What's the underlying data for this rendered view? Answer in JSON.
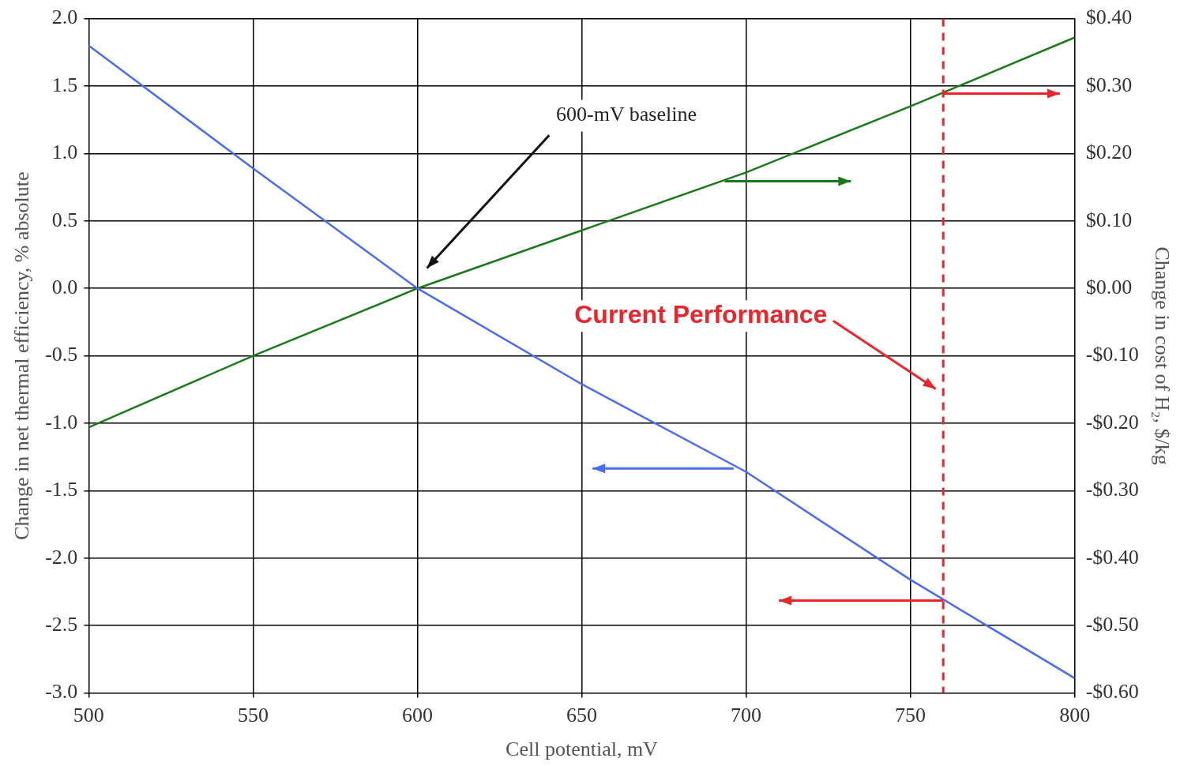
{
  "chart_data": {
    "type": "line",
    "xlabel": "Cell potential, mV",
    "ylabel": "Change in net thermal efficiency, % absolute",
    "y2label": "Change in cost of H₂, $/kg",
    "x": [
      500,
      550,
      600,
      650,
      700,
      750,
      800
    ],
    "series": [
      {
        "color": "#4a6cf0",
        "values": [
          1.8,
          0.89,
          0,
          -0.71,
          -1.36,
          -2.16,
          -2.89
        ]
      },
      {
        "color": "#1a7a1a",
        "axis": "y2",
        "values": [
          -0.206,
          -0.1,
          0,
          0.086,
          0.172,
          0.27,
          0.372
        ]
      }
    ],
    "xlim": [
      500,
      800
    ],
    "xticks": [
      500,
      550,
      600,
      650,
      700,
      750,
      800
    ],
    "ylim": [
      -3,
      2
    ],
    "yticks": [
      {
        "value": -3,
        "label": "-3.0"
      },
      {
        "value": -2.5,
        "label": "-2.5"
      },
      {
        "value": -2,
        "label": "-2.0"
      },
      {
        "value": -1.5,
        "label": "-1.5"
      },
      {
        "value": -1,
        "label": "-1.0"
      },
      {
        "value": -0.5,
        "label": "-0.5"
      },
      {
        "value": 0,
        "label": "0.0"
      },
      {
        "value": 0.5,
        "label": "0.5"
      },
      {
        "value": 1,
        "label": "1.0"
      },
      {
        "value": 1.5,
        "label": "1.5"
      },
      {
        "value": 2,
        "label": "2.0"
      }
    ],
    "y2lim": [
      -0.6,
      0.4
    ],
    "y2ticks": [
      {
        "value": -0.6,
        "label": "-$0.60"
      },
      {
        "value": -0.5,
        "label": "-$0.50"
      },
      {
        "value": -0.4,
        "label": "-$0.40"
      },
      {
        "value": -0.3,
        "label": "-$0.30"
      },
      {
        "value": -0.2,
        "label": "-$0.20"
      },
      {
        "value": -0.1,
        "label": "-$0.10"
      },
      {
        "value": 0,
        "label": "$0.00"
      },
      {
        "value": 0.1,
        "label": "$0.10"
      },
      {
        "value": 0.2,
        "label": "$0.20"
      },
      {
        "value": 0.3,
        "label": "$0.30"
      },
      {
        "value": 0.4,
        "label": "$0.40"
      }
    ],
    "ref_lines": [
      {
        "axis": "x",
        "value": 760,
        "color": "#e8262b",
        "line_style": "dashed"
      }
    ],
    "annotations": [
      "600-mV baseline",
      "Current Performance"
    ],
    "grid": true,
    "legend": false,
    "marker": "none",
    "line_style": "solid"
  }
}
